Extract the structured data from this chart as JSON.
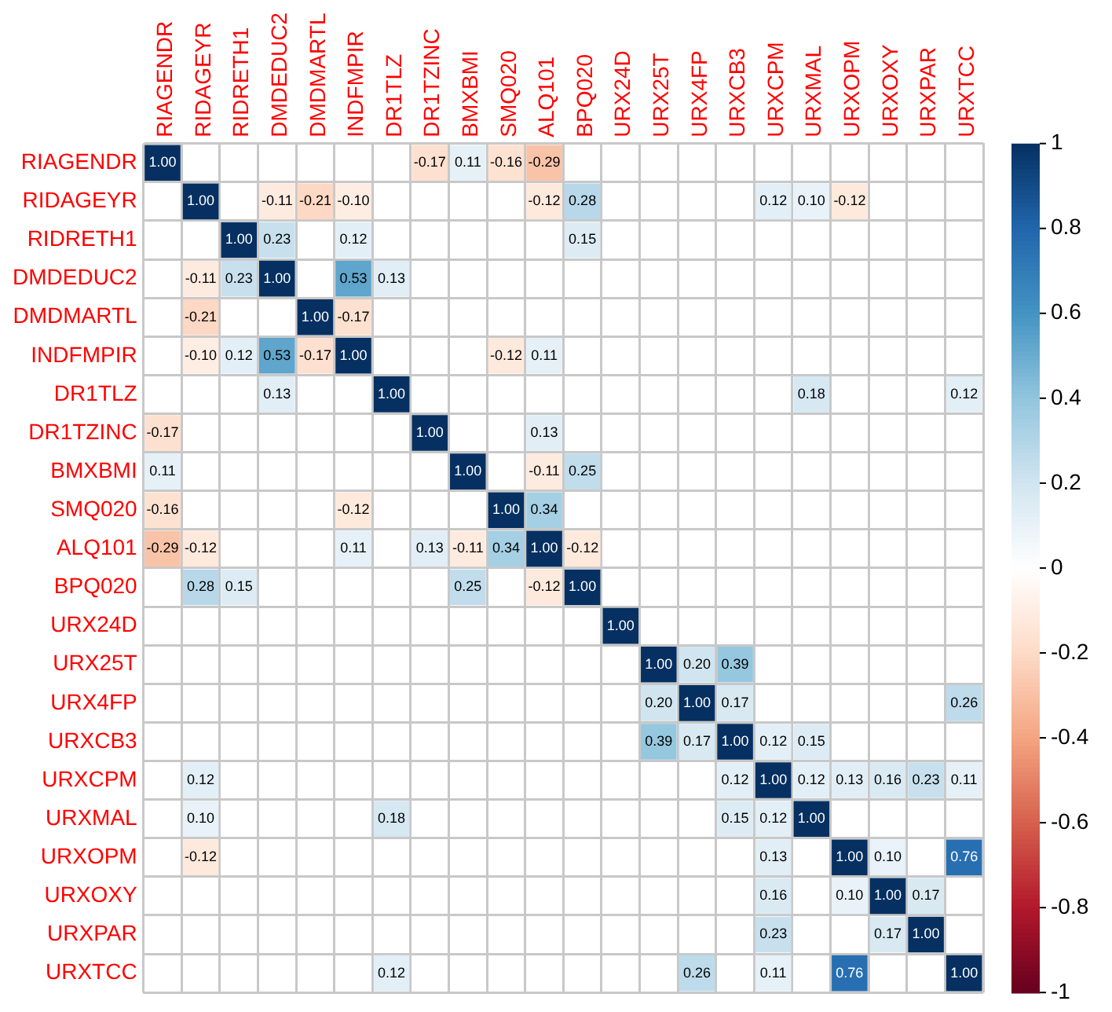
{
  "chart_data": {
    "type": "heatmap",
    "categories": [
      "RIAGENDR",
      "RIDAGEYR",
      "RIDRETH1",
      "DMDEDUC2",
      "DMDMARTL",
      "INDFMPIR",
      "DR1TLZ",
      "DR1TZINC",
      "BMXBMI",
      "SMQ020",
      "ALQ101",
      "BPQ020",
      "URX24D",
      "URX25T",
      "URX4FP",
      "URXCB3",
      "URXCPM",
      "URXMAL",
      "URXOPM",
      "URXOXY",
      "URXPAR",
      "URXTCC"
    ],
    "y_categories": [
      "RIAGENDR",
      "RIDAGEYR",
      "RIDRETH1",
      "DMDEDUC2",
      "DMDMARTL",
      "INDFMPIR",
      "DR1TLZ",
      "DR1TZINC",
      "BMXBMI",
      "SMQ020",
      "ALQ101",
      "BPQ020",
      "URX24D",
      "URX25T",
      "URX4FP",
      "URXCB3",
      "URXCPM",
      "URXMAL",
      "URXOPM",
      "URXOXY",
      "URXPAR",
      "URXTCC"
    ],
    "cells": [
      [
        1,
        null,
        null,
        null,
        null,
        null,
        null,
        -0.17,
        0.11,
        -0.16,
        -0.29,
        null,
        null,
        null,
        null,
        null,
        null,
        null,
        null,
        null,
        null,
        null
      ],
      [
        null,
        1,
        null,
        -0.11,
        -0.21,
        -0.1,
        null,
        null,
        null,
        null,
        -0.12,
        0.28,
        null,
        null,
        null,
        null,
        0.12,
        0.1,
        -0.12,
        null,
        null,
        null
      ],
      [
        null,
        null,
        1,
        0.23,
        null,
        0.12,
        null,
        null,
        null,
        null,
        null,
        0.15,
        null,
        null,
        null,
        null,
        null,
        null,
        null,
        null,
        null,
        null
      ],
      [
        null,
        -0.11,
        0.23,
        1,
        null,
        0.53,
        0.13,
        null,
        null,
        null,
        null,
        null,
        null,
        null,
        null,
        null,
        null,
        null,
        null,
        null,
        null,
        null
      ],
      [
        null,
        -0.21,
        null,
        null,
        1,
        -0.17,
        null,
        null,
        null,
        null,
        null,
        null,
        null,
        null,
        null,
        null,
        null,
        null,
        null,
        null,
        null,
        null
      ],
      [
        null,
        -0.1,
        0.12,
        0.53,
        -0.17,
        1,
        null,
        null,
        null,
        -0.12,
        0.11,
        null,
        null,
        null,
        null,
        null,
        null,
        null,
        null,
        null,
        null,
        null
      ],
      [
        null,
        null,
        null,
        0.13,
        null,
        null,
        1,
        null,
        null,
        null,
        null,
        null,
        null,
        null,
        null,
        null,
        null,
        0.18,
        null,
        null,
        null,
        0.12
      ],
      [
        -0.17,
        null,
        null,
        null,
        null,
        null,
        null,
        1,
        null,
        null,
        0.13,
        null,
        null,
        null,
        null,
        null,
        null,
        null,
        null,
        null,
        null,
        null
      ],
      [
        0.11,
        null,
        null,
        null,
        null,
        null,
        null,
        null,
        1,
        null,
        -0.11,
        0.25,
        null,
        null,
        null,
        null,
        null,
        null,
        null,
        null,
        null,
        null
      ],
      [
        -0.16,
        null,
        null,
        null,
        null,
        -0.12,
        null,
        null,
        null,
        1,
        0.34,
        null,
        null,
        null,
        null,
        null,
        null,
        null,
        null,
        null,
        null,
        null
      ],
      [
        -0.29,
        -0.12,
        null,
        null,
        null,
        0.11,
        null,
        0.13,
        -0.11,
        0.34,
        1,
        -0.12,
        null,
        null,
        null,
        null,
        null,
        null,
        null,
        null,
        null,
        null
      ],
      [
        null,
        0.28,
        0.15,
        null,
        null,
        null,
        null,
        null,
        0.25,
        null,
        -0.12,
        1,
        null,
        null,
        null,
        null,
        null,
        null,
        null,
        null,
        null,
        null
      ],
      [
        null,
        null,
        null,
        null,
        null,
        null,
        null,
        null,
        null,
        null,
        null,
        null,
        1,
        null,
        null,
        null,
        null,
        null,
        null,
        null,
        null,
        null
      ],
      [
        null,
        null,
        null,
        null,
        null,
        null,
        null,
        null,
        null,
        null,
        null,
        null,
        null,
        1,
        0.2,
        0.39,
        null,
        null,
        null,
        null,
        null,
        null
      ],
      [
        null,
        null,
        null,
        null,
        null,
        null,
        null,
        null,
        null,
        null,
        null,
        null,
        null,
        0.2,
        1,
        0.17,
        null,
        null,
        null,
        null,
        null,
        0.26
      ],
      [
        null,
        null,
        null,
        null,
        null,
        null,
        null,
        null,
        null,
        null,
        null,
        null,
        null,
        0.39,
        0.17,
        1,
        0.12,
        0.15,
        null,
        null,
        null,
        null
      ],
      [
        null,
        0.12,
        null,
        null,
        null,
        null,
        null,
        null,
        null,
        null,
        null,
        null,
        null,
        null,
        null,
        0.12,
        1,
        0.12,
        0.13,
        0.16,
        0.23,
        0.11
      ],
      [
        null,
        0.1,
        null,
        null,
        null,
        null,
        0.18,
        null,
        null,
        null,
        null,
        null,
        null,
        null,
        null,
        0.15,
        0.12,
        1,
        null,
        null,
        null,
        null
      ],
      [
        null,
        -0.12,
        null,
        null,
        null,
        null,
        null,
        null,
        null,
        null,
        null,
        null,
        null,
        null,
        null,
        null,
        0.13,
        null,
        1,
        0.1,
        null,
        0.76
      ],
      [
        null,
        null,
        null,
        null,
        null,
        null,
        null,
        null,
        null,
        null,
        null,
        null,
        null,
        null,
        null,
        null,
        0.16,
        null,
        0.1,
        1,
        0.17,
        null
      ],
      [
        null,
        null,
        null,
        null,
        null,
        null,
        null,
        null,
        null,
        null,
        null,
        null,
        null,
        null,
        null,
        null,
        0.23,
        null,
        null,
        0.17,
        1,
        null
      ],
      [
        null,
        null,
        null,
        null,
        null,
        null,
        0.12,
        null,
        null,
        null,
        null,
        null,
        null,
        null,
        0.26,
        null,
        0.11,
        null,
        0.76,
        null,
        null,
        1
      ]
    ],
    "clim": [
      -1,
      1
    ],
    "cticks": [
      -1,
      -0.8,
      -0.6,
      -0.4,
      -0.2,
      0,
      0.2,
      0.4,
      0.6,
      0.8,
      1
    ],
    "cell_labels": [
      [
        "1.00",
        null,
        null,
        null,
        null,
        null,
        null,
        "-0.17",
        "0.11",
        "-0.16",
        "-0.29",
        null,
        null,
        null,
        null,
        null,
        null,
        null,
        null,
        null,
        null,
        null
      ],
      [
        null,
        "1.00",
        null,
        "-0.11",
        "-0.21",
        "-0.10",
        null,
        null,
        null,
        null,
        "-0.12",
        "0.28",
        null,
        null,
        null,
        null,
        "0.12",
        "0.10",
        "-0.12",
        null,
        null,
        null
      ],
      [
        null,
        null,
        "1.00",
        "0.23",
        null,
        "0.12",
        null,
        null,
        null,
        null,
        null,
        "0.15",
        null,
        null,
        null,
        null,
        null,
        null,
        null,
        null,
        null,
        null
      ],
      [
        null,
        "-0.11",
        "0.23",
        "1.00",
        null,
        "0.53",
        "0.13",
        null,
        null,
        null,
        null,
        null,
        null,
        null,
        null,
        null,
        null,
        null,
        null,
        null,
        null,
        null
      ],
      [
        null,
        "-0.21",
        null,
        null,
        "1.00",
        "-0.17",
        null,
        null,
        null,
        null,
        null,
        null,
        null,
        null,
        null,
        null,
        null,
        null,
        null,
        null,
        null,
        null
      ],
      [
        null,
        "-0.10",
        "0.12",
        "0.53",
        "-0.17",
        "1.00",
        null,
        null,
        null,
        "-0.12",
        "0.11",
        null,
        null,
        null,
        null,
        null,
        null,
        null,
        null,
        null,
        null,
        null
      ],
      [
        null,
        null,
        null,
        "0.13",
        null,
        null,
        "1.00",
        null,
        null,
        null,
        null,
        null,
        null,
        null,
        null,
        null,
        null,
        "0.18",
        null,
        null,
        null,
        "0.12"
      ],
      [
        "-0.17",
        null,
        null,
        null,
        null,
        null,
        null,
        "1.00",
        null,
        null,
        "0.13",
        null,
        null,
        null,
        null,
        null,
        null,
        null,
        null,
        null,
        null,
        null
      ],
      [
        "0.11",
        null,
        null,
        null,
        null,
        null,
        null,
        null,
        "1.00",
        null,
        "-0.11",
        "0.25",
        null,
        null,
        null,
        null,
        null,
        null,
        null,
        null,
        null,
        null
      ],
      [
        "-0.16",
        null,
        null,
        null,
        null,
        "-0.12",
        null,
        null,
        null,
        "1.00",
        "0.34",
        null,
        null,
        null,
        null,
        null,
        null,
        null,
        null,
        null,
        null,
        null
      ],
      [
        "-0.29",
        "-0.12",
        null,
        null,
        null,
        "0.11",
        null,
        "0.13",
        "-0.11",
        "0.34",
        "1.00",
        "-0.12",
        null,
        null,
        null,
        null,
        null,
        null,
        null,
        null,
        null,
        null
      ],
      [
        null,
        "0.28",
        "0.15",
        null,
        null,
        null,
        null,
        null,
        "0.25",
        null,
        "-0.12",
        "1.00",
        null,
        null,
        null,
        null,
        null,
        null,
        null,
        null,
        null,
        null
      ],
      [
        null,
        null,
        null,
        null,
        null,
        null,
        null,
        null,
        null,
        null,
        null,
        null,
        "1.00",
        null,
        null,
        null,
        null,
        null,
        null,
        null,
        null,
        null
      ],
      [
        null,
        null,
        null,
        null,
        null,
        null,
        null,
        null,
        null,
        null,
        null,
        null,
        null,
        "1.00",
        "0.20",
        "0.39",
        null,
        null,
        null,
        null,
        null,
        null
      ],
      [
        null,
        null,
        null,
        null,
        null,
        null,
        null,
        null,
        null,
        null,
        null,
        null,
        null,
        "0.20",
        "1.00",
        "0.17",
        null,
        null,
        null,
        null,
        null,
        "0.26"
      ],
      [
        null,
        null,
        null,
        null,
        null,
        null,
        null,
        null,
        null,
        null,
        null,
        null,
        null,
        "0.39",
        "0.17",
        "1.00",
        "0.12",
        "0.15",
        null,
        null,
        null,
        null
      ],
      [
        null,
        "0.12",
        null,
        null,
        null,
        null,
        null,
        null,
        null,
        null,
        null,
        null,
        null,
        null,
        null,
        "0.12",
        "1.00",
        "0.12",
        "0.13",
        "0.16",
        "0.23",
        "0.11"
      ],
      [
        null,
        "0.10",
        null,
        null,
        null,
        null,
        "0.18",
        null,
        null,
        null,
        null,
        null,
        null,
        null,
        null,
        "0.15",
        "0.12",
        "1.00",
        null,
        null,
        null,
        null
      ],
      [
        null,
        "-0.12",
        null,
        null,
        null,
        null,
        null,
        null,
        null,
        null,
        null,
        null,
        null,
        null,
        null,
        null,
        "0.13",
        null,
        "1.00",
        "0.10",
        null,
        "0.76"
      ],
      [
        null,
        null,
        null,
        null,
        null,
        null,
        null,
        null,
        null,
        null,
        null,
        null,
        null,
        null,
        null,
        null,
        "0.16",
        null,
        "0.10",
        "1.00",
        "0.17",
        null
      ],
      [
        null,
        null,
        null,
        null,
        null,
        null,
        null,
        null,
        null,
        null,
        null,
        null,
        null,
        null,
        null,
        null,
        "0.23",
        null,
        null,
        "0.17",
        "1.00",
        null
      ],
      [
        null,
        null,
        null,
        null,
        null,
        null,
        "0.12",
        null,
        null,
        null,
        null,
        null,
        null,
        null,
        "0.26",
        null,
        "0.11",
        null,
        "0.76",
        null,
        null,
        "1.00"
      ]
    ],
    "grid": true
  }
}
